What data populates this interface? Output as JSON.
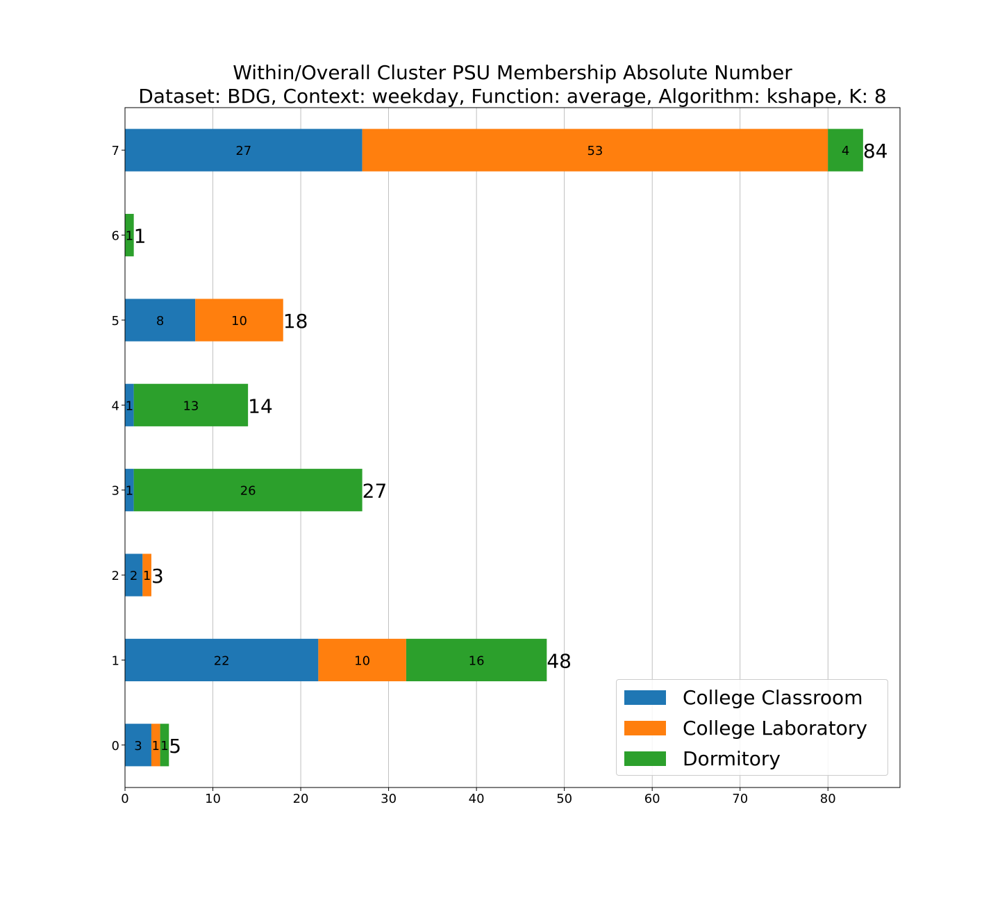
{
  "chart_data": {
    "type": "bar",
    "orientation": "horizontal",
    "stacked": true,
    "title": "Within/Overall Cluster PSU Membership Absolute Number",
    "subtitle": "Dataset: BDG, Context: weekday, Function: average, Algorithm: kshape, K: 8",
    "xlabel": "",
    "ylabel": "",
    "categories": [
      "0",
      "1",
      "2",
      "3",
      "4",
      "5",
      "6",
      "7"
    ],
    "xlim": [
      0,
      88.2
    ],
    "xticks": [
      0,
      10,
      20,
      30,
      40,
      50,
      60,
      70,
      80
    ],
    "grid": "x",
    "legend_position": "lower-right",
    "series": [
      {
        "name": "College Classroom",
        "color": "#1f77b4",
        "values": [
          3,
          22,
          2,
          1,
          1,
          8,
          0,
          27
        ]
      },
      {
        "name": "College Laboratory",
        "color": "#ff7f0e",
        "values": [
          1,
          10,
          1,
          0,
          0,
          10,
          0,
          53
        ]
      },
      {
        "name": "Dormitory",
        "color": "#2ca02c",
        "values": [
          1,
          16,
          0,
          26,
          13,
          0,
          1,
          4
        ]
      }
    ],
    "totals": [
      5,
      48,
      3,
      27,
      14,
      18,
      1,
      84
    ]
  }
}
